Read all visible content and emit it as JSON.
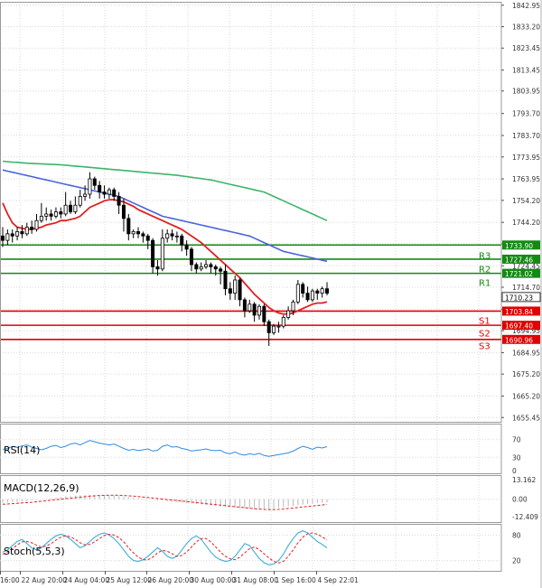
{
  "chart_data": {
    "type": "candlestick",
    "price_axis": {
      "ticks": [
        "1842.95",
        "1833.20",
        "1823.45",
        "1813.45",
        "1803.95",
        "1793.70",
        "1783.70",
        "1773.95",
        "1763.95",
        "1754.20",
        "1744.20",
        "1734.45",
        "1724.45",
        "1714.70",
        "1704.70",
        "1694.95",
        "1684.95",
        "1675.20",
        "1665.20",
        "1655.45"
      ],
      "current_price": "1710.23",
      "ylim": [
        1653.5,
        1844.5
      ]
    },
    "x_axis": {
      "ticks": [
        "16:00",
        "22 Aug 20:00",
        "24 Aug 04:00",
        "25 Aug 12:00",
        "26 Aug 20:00",
        "30 Aug 00:00",
        "31 Aug 08:00",
        "1 Sep 16:00",
        "4 Sep 22:01"
      ]
    },
    "levels": [
      {
        "name": "R3",
        "value": 1733.9,
        "label": "1733.90",
        "color": "#148a14"
      },
      {
        "name": "R2",
        "value": 1727.46,
        "label": "1727.46",
        "color": "#148a14"
      },
      {
        "name": "R1",
        "value": 1721.02,
        "label": "1721.02",
        "color": "#148a14"
      },
      {
        "name": "",
        "value": 1703.84,
        "label": "1703.84",
        "color": "#e00000"
      },
      {
        "name": "S1",
        "value": 1697.4,
        "label": "1697.40",
        "color": "#e00000"
      },
      {
        "name": "S2",
        "value": 1690.96,
        "label": "1690.96",
        "color": "#e00000"
      }
    ],
    "level_labels": [
      {
        "name": "R3",
        "value": 1729.2
      },
      {
        "name": "R2",
        "value": 1723.2
      },
      {
        "name": "R1",
        "value": 1717.0
      },
      {
        "name": "S1",
        "value": 1699.8
      },
      {
        "name": "S2",
        "value": 1694.0
      },
      {
        "name": "S3",
        "value": 1688.3
      }
    ],
    "candles": [
      [
        1738,
        1736,
        1742,
        1733
      ],
      [
        1736,
        1739,
        1741,
        1734
      ],
      [
        1739,
        1738,
        1741,
        1735
      ],
      [
        1738,
        1740,
        1742,
        1736
      ],
      [
        1740,
        1739,
        1743,
        1737
      ],
      [
        1739,
        1742,
        1744,
        1738
      ],
      [
        1742,
        1741,
        1745,
        1739
      ],
      [
        1741,
        1745,
        1748,
        1740
      ],
      [
        1745,
        1747,
        1753,
        1744
      ],
      [
        1747,
        1748,
        1751,
        1745
      ],
      [
        1748,
        1747,
        1750,
        1745
      ],
      [
        1747,
        1749,
        1751,
        1746
      ],
      [
        1749,
        1748,
        1751,
        1746
      ],
      [
        1748,
        1752,
        1758,
        1747
      ],
      [
        1752,
        1749,
        1754,
        1748
      ],
      [
        1749,
        1752,
        1756,
        1748
      ],
      [
        1752,
        1756,
        1759,
        1751
      ],
      [
        1756,
        1757,
        1761,
        1754
      ],
      [
        1757,
        1764,
        1767,
        1755
      ],
      [
        1764,
        1761,
        1765,
        1759
      ],
      [
        1761,
        1758,
        1763,
        1755
      ],
      [
        1758,
        1757,
        1761,
        1755
      ],
      [
        1757,
        1759,
        1760,
        1755
      ],
      [
        1759,
        1756,
        1760,
        1754
      ],
      [
        1756,
        1752,
        1758,
        1748
      ],
      [
        1752,
        1746,
        1755,
        1740
      ],
      [
        1746,
        1739,
        1748,
        1736
      ],
      [
        1739,
        1740,
        1741,
        1737
      ],
      [
        1740,
        1739,
        1742,
        1737
      ],
      [
        1739,
        1738,
        1740,
        1735
      ],
      [
        1738,
        1736,
        1739,
        1732
      ],
      [
        1736,
        1724,
        1737,
        1721
      ],
      [
        1724,
        1723,
        1727,
        1720
      ],
      [
        1723,
        1737,
        1741,
        1722
      ],
      [
        1737,
        1739,
        1741,
        1735
      ],
      [
        1739,
        1738,
        1741,
        1736
      ],
      [
        1738,
        1738,
        1740,
        1735
      ],
      [
        1738,
        1734,
        1739,
        1731
      ],
      [
        1734,
        1732,
        1736,
        1729
      ],
      [
        1732,
        1725,
        1733,
        1722
      ],
      [
        1725,
        1723,
        1726,
        1721
      ],
      [
        1723,
        1724,
        1726,
        1722
      ],
      [
        1724,
        1725,
        1727,
        1723
      ],
      [
        1725,
        1724,
        1726,
        1721
      ],
      [
        1724,
        1723,
        1725,
        1720
      ],
      [
        1723,
        1722,
        1724,
        1716
      ],
      [
        1722,
        1714,
        1725,
        1711
      ],
      [
        1714,
        1712,
        1717,
        1709
      ],
      [
        1712,
        1718,
        1720,
        1709
      ],
      [
        1718,
        1709,
        1719,
        1706
      ],
      [
        1709,
        1704,
        1710,
        1701
      ],
      [
        1704,
        1707,
        1709,
        1703
      ],
      [
        1707,
        1702,
        1708,
        1699
      ],
      [
        1702,
        1706,
        1707,
        1700
      ],
      [
        1706,
        1699,
        1707,
        1697
      ],
      [
        1699,
        1694,
        1700,
        1688
      ],
      [
        1694,
        1697,
        1698,
        1693
      ],
      [
        1697,
        1697,
        1699,
        1694
      ],
      [
        1697,
        1701,
        1702,
        1696
      ],
      [
        1701,
        1704,
        1706,
        1700
      ],
      [
        1704,
        1708,
        1709,
        1702
      ],
      [
        1708,
        1716,
        1718,
        1707
      ],
      [
        1716,
        1712,
        1717,
        1710
      ],
      [
        1712,
        1709,
        1715,
        1708
      ],
      [
        1709,
        1713,
        1714,
        1708
      ],
      [
        1713,
        1712,
        1714,
        1709
      ],
      [
        1712,
        1714,
        1715,
        1710
      ],
      [
        1714,
        1712,
        1717,
        1711
      ]
    ],
    "red_ma": [
      1753,
      1748,
      1744,
      1742,
      1741.5,
      1741,
      1741,
      1741.5,
      1742,
      1743,
      1743.5,
      1744,
      1745,
      1745,
      1745.5,
      1746,
      1747,
      1749,
      1751,
      1752,
      1753,
      1754,
      1754.5,
      1754.5,
      1754,
      1753.5,
      1752.5,
      1751.5,
      1750,
      1749,
      1748,
      1747,
      1746,
      1745,
      1744,
      1743,
      1742,
      1741,
      1739.5,
      1738,
      1736.5,
      1735,
      1733,
      1731,
      1729,
      1727,
      1725,
      1723,
      1721,
      1719,
      1716.5,
      1714,
      1711.5,
      1709.5,
      1707.5,
      1705.5,
      1704,
      1703,
      1702.5,
      1702.5,
      1703,
      1704,
      1705,
      1706,
      1707,
      1707.5,
      1707.5,
      1708
    ],
    "blue_ma": [
      1768,
      1767.5,
      1767,
      1766.5,
      1766,
      1765.5,
      1765,
      1764.5,
      1764,
      1763.5,
      1763,
      1762.5,
      1762,
      1761.5,
      1761,
      1760.5,
      1760,
      1759.5,
      1759,
      1758.5,
      1758,
      1757.5,
      1757,
      1756.5,
      1756,
      1755,
      1754,
      1753,
      1752,
      1751,
      1750,
      1749,
      1748,
      1747,
      1746.5,
      1746,
      1745.5,
      1745,
      1744.5,
      1744,
      1743.5,
      1743,
      1742.5,
      1742,
      1741.5,
      1741,
      1740.5,
      1740,
      1739.5,
      1739,
      1738.5,
      1738,
      1737,
      1736,
      1735,
      1734,
      1733,
      1732,
      1731,
      1730.5,
      1730,
      1729.5,
      1729,
      1728.5,
      1728,
      1727.5,
      1727,
      1726.5
    ],
    "green_ma": [
      1772,
      1771.8,
      1771.6,
      1771.5,
      1771.3,
      1771.1,
      1771,
      1770.9,
      1770.8,
      1770.7,
      1770.6,
      1770.5,
      1770.4,
      1770.2,
      1770,
      1769.8,
      1769.6,
      1769.4,
      1769.2,
      1769,
      1768.8,
      1768.6,
      1768.4,
      1768.2,
      1768,
      1767.8,
      1767.6,
      1767.4,
      1767.2,
      1767,
      1766.8,
      1766.6,
      1766.4,
      1766.2,
      1766,
      1765.8,
      1765.6,
      1765.3,
      1765,
      1764.7,
      1764.4,
      1764.1,
      1763.8,
      1763.5,
      1763,
      1762.5,
      1762,
      1761.5,
      1761,
      1760.5,
      1760,
      1759.5,
      1759,
      1758.5,
      1758,
      1757,
      1756,
      1755,
      1754,
      1753,
      1752,
      1751,
      1750,
      1749,
      1748,
      1747,
      1746,
      1745
    ],
    "rsi": {
      "label": "RSI(14)",
      "ticks": [
        "70",
        "30",
        "0"
      ],
      "values": [
        48,
        50,
        55,
        52,
        56,
        58,
        53,
        50,
        47,
        50,
        55,
        57,
        52,
        55,
        60,
        62,
        58,
        63,
        68,
        65,
        62,
        60,
        58,
        60,
        55,
        50,
        46,
        48,
        45,
        47,
        49,
        44,
        46,
        55,
        58,
        53,
        54,
        50,
        48,
        44,
        46,
        47,
        49,
        46,
        45,
        46,
        40,
        38,
        42,
        37,
        35,
        38,
        36,
        39,
        34,
        32,
        34,
        36,
        38,
        40,
        44,
        50,
        55,
        52,
        48,
        53,
        51,
        54
      ]
    },
    "macd": {
      "label": "MACD(12,26,9)",
      "ticks": [
        "13.162",
        "0.00",
        "-12.409"
      ],
      "histogram": [
        -2,
        -1.8,
        -1.6,
        -1.5,
        -1.2,
        -1,
        -0.6,
        -0.3,
        0,
        0.3,
        0.6,
        1,
        1.3,
        1.6,
        1.9,
        2.1,
        2.3,
        2.5,
        2.6,
        2.6,
        2.5,
        2.4,
        2.2,
        2,
        1.8,
        1.5,
        1.2,
        0.9,
        0.6,
        0.3,
        0,
        -0.3,
        -0.6,
        -0.9,
        -1.2,
        -1.5,
        -1.8,
        -2,
        -2.3,
        -2.5,
        -2.8,
        -3,
        -3.3,
        -3.6,
        -3.9,
        -4.2,
        -4.5,
        -4.8,
        -5,
        -5.2,
        -5.5,
        -5.7,
        -5.9,
        -6,
        -6,
        -5.8,
        -5.5,
        -5.1,
        -4.7,
        -4.3,
        -3.9,
        -3.5,
        -3.1,
        -2.8,
        -2.5,
        -2.2,
        -2,
        -1.8
      ],
      "signal": [
        -3,
        -2.8,
        -2.6,
        -2.4,
        -2.2,
        -2,
        -1.8,
        -1.5,
        -1.2,
        -0.9,
        -0.6,
        -0.3,
        0,
        0.3,
        0.6,
        0.9,
        1.2,
        1.5,
        1.8,
        2,
        2.2,
        2.3,
        2.4,
        2.4,
        2.3,
        2.2,
        2,
        1.8,
        1.6,
        1.3,
        1,
        0.7,
        0.4,
        0.1,
        -0.2,
        -0.5,
        -0.8,
        -1.1,
        -1.4,
        -1.7,
        -2,
        -2.3,
        -2.6,
        -2.9,
        -3.2,
        -3.5,
        -3.8,
        -4.1,
        -4.4,
        -4.7,
        -5,
        -5.3,
        -5.6,
        -5.8,
        -6,
        -6.1,
        -6.1,
        -6,
        -5.8,
        -5.5,
        -5.2,
        -4.9,
        -4.6,
        -4.3,
        -4,
        -3.7,
        -3.4,
        -3.1
      ]
    },
    "stoch": {
      "label": "Stoch(5,5,3)",
      "ticks": [
        "80",
        "20"
      ],
      "k": [
        40,
        45,
        55,
        65,
        70,
        60,
        50,
        45,
        50,
        60,
        70,
        78,
        82,
        78,
        70,
        60,
        50,
        55,
        65,
        75,
        82,
        85,
        80,
        72,
        60,
        45,
        30,
        20,
        18,
        22,
        30,
        40,
        50,
        42,
        30,
        25,
        30,
        45,
        60,
        72,
        78,
        70,
        55,
        40,
        28,
        22,
        18,
        20,
        30,
        45,
        60,
        55,
        40,
        25,
        15,
        10,
        12,
        20,
        35,
        55,
        72,
        85,
        90,
        85,
        75,
        65,
        58,
        50
      ],
      "d": [
        35,
        40,
        48,
        57,
        64,
        65,
        62,
        56,
        52,
        54,
        60,
        68,
        75,
        78,
        76,
        70,
        62,
        57,
        58,
        64,
        72,
        79,
        82,
        80,
        74,
        64,
        50,
        38,
        28,
        22,
        22,
        28,
        38,
        44,
        42,
        36,
        30,
        32,
        40,
        52,
        64,
        72,
        72,
        64,
        52,
        40,
        30,
        24,
        22,
        28,
        38,
        48,
        52,
        46,
        36,
        26,
        18,
        14,
        18,
        30,
        45,
        62,
        75,
        83,
        85,
        82,
        76,
        68
      ]
    }
  }
}
